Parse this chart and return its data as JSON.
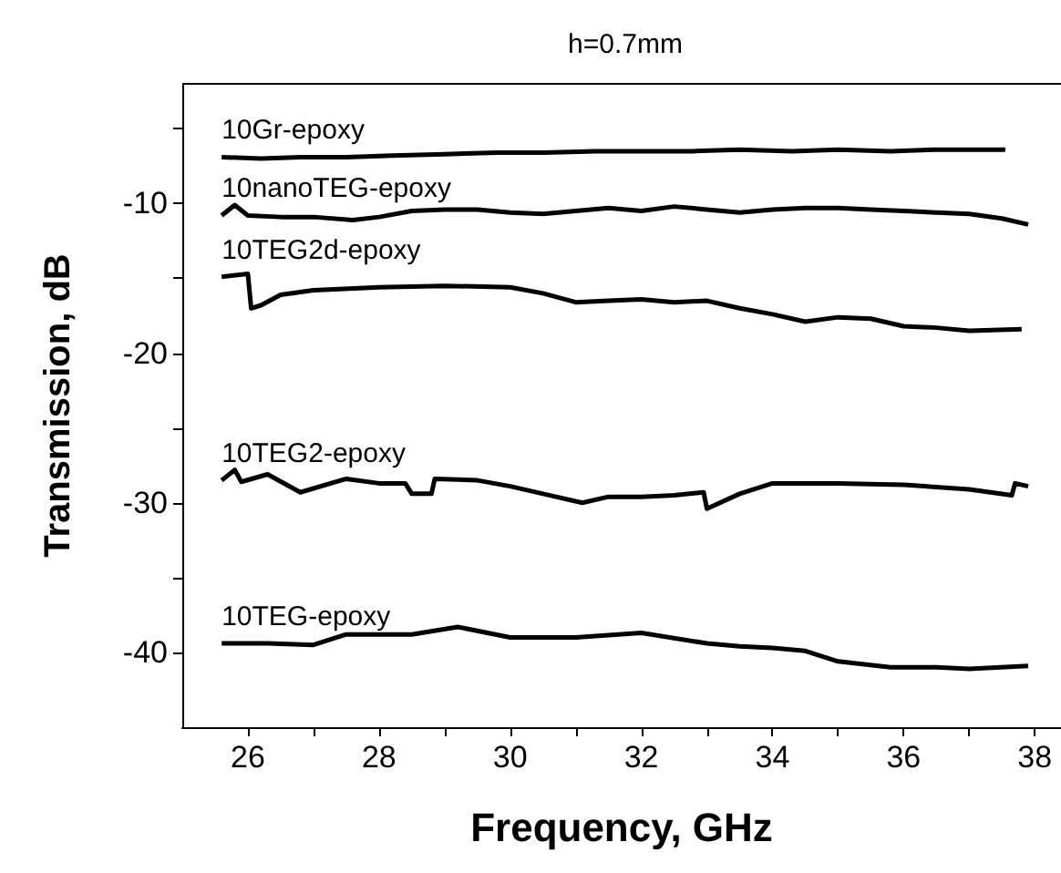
{
  "chart_data": {
    "type": "line",
    "title": "h=0.7mm",
    "xlabel": "Frequency, GHz",
    "ylabel": "Transmission, dB",
    "xlim": [
      25,
      38.4
    ],
    "xticks": [
      26,
      {
        "value": 27,
        "label": null
      },
      28,
      {
        "value": 29,
        "label": null
      },
      30,
      {
        "value": 31,
        "label": null
      },
      32,
      {
        "value": 33,
        "label": null
      },
      34,
      {
        "value": 35,
        "label": null
      },
      36,
      {
        "value": 37,
        "label": null
      },
      38
    ],
    "ylim": [
      -45,
      -2
    ],
    "yticks": [
      -40,
      {
        "value": -35,
        "label": null
      },
      -30,
      {
        "value": -25,
        "label": null
      },
      -20,
      {
        "value": -15,
        "label": null
      },
      -10,
      {
        "value": -5,
        "label": null
      }
    ],
    "grid": false,
    "legend": false,
    "marker": "none",
    "line_style": "solid",
    "series": [
      {
        "name": "10Gr-epoxy",
        "color": "#000000",
        "x": [
          25.6,
          26.2,
          26.8,
          27.5,
          28.2,
          29,
          29.8,
          30.5,
          31.3,
          32,
          32.8,
          33.5,
          34.3,
          35,
          35.8,
          36.5,
          37.2,
          37.55
        ],
        "values": [
          -6.9,
          -7,
          -6.9,
          -6.9,
          -6.8,
          -6.7,
          -6.6,
          -6.6,
          -6.5,
          -6.5,
          -6.5,
          -6.4,
          -6.5,
          -6.4,
          -6.5,
          -6.4,
          -6.4,
          -6.4
        ]
      },
      {
        "name": "10nanoTEG-epoxy",
        "color": "#000000",
        "x": [
          25.6,
          25.8,
          26,
          26.5,
          27,
          27.6,
          28,
          28.5,
          29,
          29.5,
          30,
          30.5,
          31,
          31.5,
          32,
          32.5,
          33,
          33.5,
          34,
          34.5,
          35,
          35.5,
          36,
          36.5,
          37,
          37.5,
          37.9
        ],
        "values": [
          -10.8,
          -10.1,
          -10.8,
          -10.9,
          -10.9,
          -11.1,
          -10.9,
          -10.5,
          -10.4,
          -10.4,
          -10.6,
          -10.7,
          -10.5,
          -10.3,
          -10.5,
          -10.2,
          -10.4,
          -10.6,
          -10.4,
          -10.3,
          -10.3,
          -10.4,
          -10.5,
          -10.6,
          -10.7,
          -11,
          -11.4
        ]
      },
      {
        "name": "10TEG2d-epoxy",
        "color": "#000000",
        "x": [
          25.6,
          26,
          26.05,
          26.2,
          26.5,
          27,
          28,
          29,
          30,
          30.5,
          31,
          31.5,
          32,
          32.5,
          33,
          33.5,
          34,
          34.5,
          35,
          35.5,
          36,
          36.5,
          37,
          37.8
        ],
        "values": [
          -14.9,
          -14.7,
          -17,
          -16.8,
          -16.1,
          -15.8,
          -15.6,
          -15.5,
          -15.6,
          -16,
          -16.6,
          -16.5,
          -16.4,
          -16.6,
          -16.5,
          -17,
          -17.4,
          -17.9,
          -17.6,
          -17.7,
          -18.2,
          -18.3,
          -18.5,
          -18.4
        ]
      },
      {
        "name": "10TEG2-epoxy",
        "color": "#000000",
        "x": [
          25.6,
          25.8,
          25.9,
          26.3,
          26.8,
          27.5,
          28,
          28.4,
          28.5,
          28.8,
          28.85,
          29.5,
          30,
          30.5,
          31.1,
          31.5,
          32,
          32.5,
          32.95,
          33.0,
          33.5,
          34,
          35,
          36,
          37,
          37.65,
          37.7,
          37.9
        ],
        "values": [
          -28.5,
          -27.8,
          -28.6,
          -28.1,
          -29.3,
          -28.4,
          -28.7,
          -28.7,
          -29.4,
          -29.4,
          -28.4,
          -28.5,
          -28.9,
          -29.4,
          -30,
          -29.6,
          -29.6,
          -29.5,
          -29.3,
          -30.4,
          -29.4,
          -28.7,
          -28.7,
          -28.8,
          -29.1,
          -29.5,
          -28.7,
          -28.9
        ]
      },
      {
        "name": "10TEG-epoxy",
        "color": "#000000",
        "x": [
          25.6,
          26.3,
          27,
          27.5,
          28.5,
          29.2,
          30,
          31,
          32,
          33,
          33.5,
          34,
          34.5,
          35,
          35.8,
          36.5,
          37,
          37.9
        ],
        "values": [
          -39.4,
          -39.4,
          -39.5,
          -38.8,
          -38.8,
          -38.3,
          -39,
          -39,
          -38.7,
          -39.4,
          -39.6,
          -39.7,
          -39.9,
          -40.6,
          -41,
          -41,
          -41.1,
          -40.9
        ]
      }
    ]
  }
}
